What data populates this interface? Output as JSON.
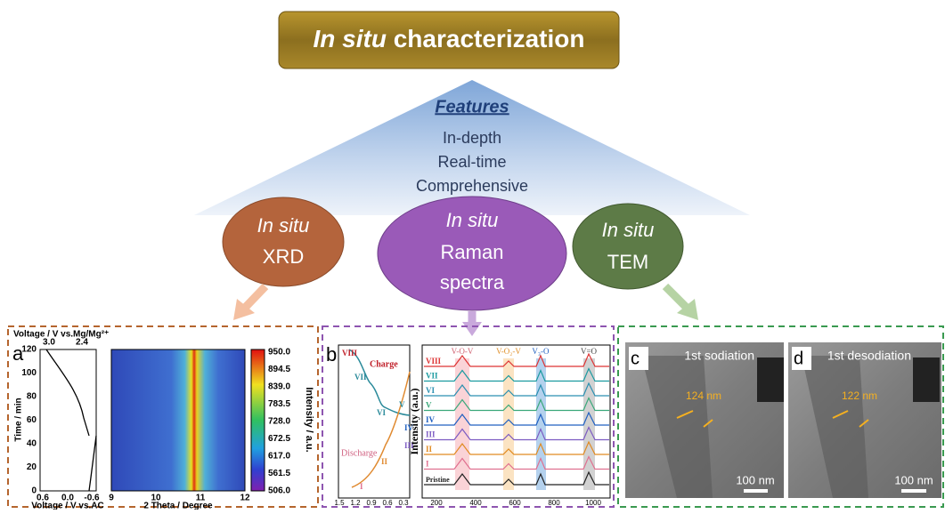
{
  "header": {
    "title_italic": "In situ",
    "title_rest": "characterization"
  },
  "features": {
    "heading": "Features",
    "items": [
      "In-depth",
      "Real-time",
      "Comprehensive"
    ]
  },
  "nodes": [
    {
      "italic": "In situ",
      "lines": [
        "XRD"
      ]
    },
    {
      "italic": "In situ",
      "lines": [
        "Raman",
        "spectra"
      ]
    },
    {
      "italic": "In situ",
      "lines": [
        "TEM"
      ]
    }
  ],
  "panels": [
    {
      "label": "a",
      "top_axis_title": "Voltage / V vs.Mg/Mg²⁺",
      "top_ticks": [
        "3.0",
        "2.4"
      ],
      "y_axis_title": "Time / min",
      "y_ticks": [
        "0",
        "20",
        "40",
        "60",
        "80",
        "100",
        "120"
      ],
      "x_ticks": [
        "0.6",
        "0.0",
        "-0.6"
      ],
      "x_axis_title": "Voltage / V vs.AC",
      "map_x_ticks": [
        "9",
        "10",
        "11",
        "12"
      ],
      "map_x_title": "2 Theta / Degree",
      "colorbar_ticks": [
        "950.0",
        "894.5",
        "839.0",
        "783.5",
        "728.0",
        "672.5",
        "617.0",
        "561.5",
        "506.0"
      ],
      "colorbar_title": "Intensity / a.u."
    },
    {
      "label": "b",
      "stages": [
        "VIII",
        "VII",
        "VI",
        "V",
        "IV",
        "III",
        "II",
        "I"
      ],
      "charge": "Charge",
      "discharge": "Discharge",
      "x_ticks": [
        "1.5",
        "1.2",
        "0.9",
        "0.6",
        "0.3"
      ],
      "y_axis_title": "Intensity (a.u.)",
      "peaks": [
        "V-O-V",
        "V-O₂-V",
        "V₃-O",
        "V=O"
      ],
      "curves": [
        "VIII",
        "VII",
        "VI",
        "V",
        "IV",
        "III",
        "II",
        "I",
        "Pristine"
      ],
      "x_ticks_2": [
        "200",
        "400",
        "600",
        "800",
        "1000"
      ]
    },
    {
      "label": "c",
      "caption": "1st sodiation",
      "measure": "124 nm",
      "scale": "100 nm"
    },
    {
      "label": "d",
      "caption": "1st desodiation",
      "measure": "122 nm",
      "scale": "100 nm"
    }
  ]
}
